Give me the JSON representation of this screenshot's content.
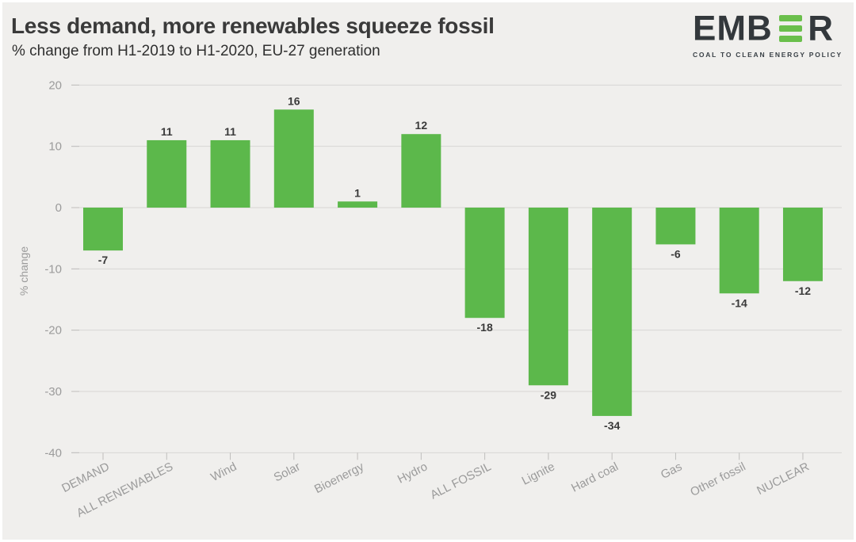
{
  "header": {
    "title": "Less demand, more renewables squeeze fossil",
    "subtitle": "% change from H1-2019 to H1-2020, EU-27 generation"
  },
  "logo": {
    "left": "EMB",
    "right": "R",
    "e_bars_icon": "three-green-bars-forming-letter-E",
    "tagline": "COAL TO CLEAN ENERGY POLICY"
  },
  "chart_data": {
    "type": "bar",
    "title": "Less demand, more renewables squeeze fossil",
    "subtitle": "% change from H1-2019 to H1-2020, EU-27 generation",
    "categories": [
      "DEMAND",
      "ALL RENEWABLES",
      "Wind",
      "Solar",
      "Bioenergy",
      "Hydro",
      "ALL FOSSIL",
      "Lignite",
      "Hard coal",
      "Gas",
      "Other fossil",
      "NUCLEAR"
    ],
    "values": [
      -7,
      11,
      11,
      16,
      1,
      12,
      -18,
      -29,
      -34,
      -6,
      -14,
      -12
    ],
    "value_labels": [
      "-7",
      "11",
      "11",
      "16",
      "1",
      "12",
      "-18",
      "-29",
      "-34",
      "-6",
      "-14",
      "-12"
    ],
    "xlabel": "",
    "ylabel": "% change",
    "ylim": [
      -40,
      20
    ],
    "yticks": [
      20,
      10,
      0,
      -10,
      -20,
      -30,
      -40
    ],
    "grid": true,
    "legend": "none",
    "bar_color": "#5cb84b"
  },
  "colors": {
    "background": "#f0efed",
    "bar": "#5cb84b",
    "grid": "#d7d6d4",
    "tick": "#bfbebc",
    "axis_text": "#9b9b9b",
    "value_text": "#3a3a3a",
    "title_text": "#3a3a3a",
    "logo_dark": "#33383c",
    "logo_green": "#6abf4b"
  }
}
